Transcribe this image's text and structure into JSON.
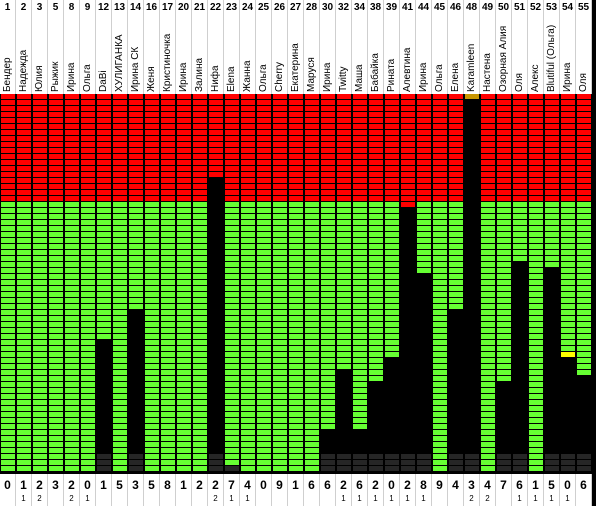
{
  "colors": {
    "red": "#ff0000",
    "green": "#66ff33",
    "yellow": "#ffff99",
    "gold": "#ffff00",
    "brown": "#c89600",
    "dark": "#262626"
  },
  "columns": [
    {
      "num": "1",
      "name": "Бендер",
      "score": "0",
      "sub": "",
      "black_to": 70,
      "yellow_from": 68
    },
    {
      "num": "2",
      "name": "Надежда",
      "score": "1",
      "sub": "1",
      "black_to": 46,
      "gold_at": 46,
      "yellow_from": 54
    },
    {
      "num": "3",
      "name": "Юлия",
      "score": "2",
      "sub": "2",
      "black_to": 64,
      "yellow_from": 54
    },
    {
      "num": "5",
      "name": "Рыжик",
      "score": "3",
      "sub": "",
      "black_to": 64,
      "yellow_from": 54
    },
    {
      "num": "8",
      "name": "Ирина",
      "score": "2",
      "sub": "2",
      "black_to": 49,
      "gold_at": 49,
      "yellow_from": 54
    },
    {
      "num": "9",
      "name": "Ольга",
      "score": "0",
      "sub": "1",
      "black_to": 54,
      "yellow_from": 54,
      "gold_at": 72
    },
    {
      "num": "12",
      "name": "DaBi",
      "score": "1",
      "sub": "",
      "black_to": 23
    },
    {
      "num": "13",
      "name": "ХУЛИГАНКА",
      "score": "5",
      "sub": "",
      "black_to": 54,
      "yellow_from": 54,
      "gold_at": 72
    },
    {
      "num": "14",
      "name": "Ирина СК",
      "score": "3",
      "sub": "",
      "black_to": 18
    },
    {
      "num": "16",
      "name": "Женя",
      "score": "5",
      "sub": "",
      "black_to": 54,
      "yellow_from": 54,
      "gold_at": 72
    },
    {
      "num": "17",
      "name": "Кристиночка",
      "score": "8",
      "sub": "",
      "black_to": 64,
      "yellow_from": 54
    },
    {
      "num": "20",
      "name": "Ирина",
      "score": "1",
      "sub": "",
      "black_to": 54,
      "yellow_from": 54,
      "gold_at": 70
    },
    {
      "num": "21",
      "name": "Залина",
      "score": "2",
      "sub": "",
      "black_to": 54,
      "yellow_from": 54,
      "gold_at": 70
    },
    {
      "num": "22",
      "name": "Нифа",
      "score": "2",
      "sub": "2",
      "black_to": 0,
      "red_from_black": 16
    },
    {
      "num": "23",
      "name": "Elena",
      "score": "7",
      "sub": "1",
      "black_to": 44
    },
    {
      "num": "24",
      "name": "Жанна",
      "score": "4",
      "sub": "1",
      "black_to": 56,
      "gold_at": 56
    },
    {
      "num": "25",
      "name": "Ольга",
      "score": "0",
      "sub": "",
      "black_to": 56,
      "yellow_from": 56,
      "gold_at": 74
    },
    {
      "num": "26",
      "name": "Cherry",
      "score": "9",
      "sub": "",
      "black_to": 54
    },
    {
      "num": "27",
      "name": "Екатерина",
      "score": "1",
      "sub": "",
      "black_to": 58,
      "yellow_from": 54
    },
    {
      "num": "28",
      "name": "Маруся",
      "score": "6",
      "sub": "",
      "black_to": 62,
      "yellow_from": 54
    },
    {
      "num": "30",
      "name": "Ирина",
      "score": "6",
      "sub": "",
      "black_to": 38
    },
    {
      "num": "32",
      "name": "Twitty",
      "score": "2",
      "sub": "1",
      "black_to": 28
    },
    {
      "num": "34",
      "name": "Маша",
      "score": "6",
      "sub": "1",
      "black_to": 38
    },
    {
      "num": "38",
      "name": "Бабайка",
      "score": "2",
      "sub": "1",
      "black_to": 30
    },
    {
      "num": "39",
      "name": "Рината",
      "score": "0",
      "sub": "1",
      "black_to": 26
    },
    {
      "num": "41",
      "name": "Алевтина",
      "score": "2",
      "sub": "1",
      "black_to": 0,
      "red_from_black": 21
    },
    {
      "num": "44",
      "name": "Ирина",
      "score": "8",
      "sub": "1",
      "black_to": 12
    },
    {
      "num": "45",
      "name": "Ольга",
      "score": "9",
      "sub": "",
      "black_to": 60,
      "yellow_from": 54
    },
    {
      "num": "46",
      "name": "Елена",
      "score": "4",
      "sub": "",
      "black_to": 18
    },
    {
      "num": "48",
      "name": "Karamleen",
      "score": "3",
      "sub": "2",
      "black_to": 0,
      "brown_top": true
    },
    {
      "num": "49",
      "name": "Настена",
      "score": "4",
      "sub": "2",
      "black_to": 64,
      "yellow_from": 54
    },
    {
      "num": "50",
      "name": "Озорная Алия",
      "score": "7",
      "sub": "",
      "black_to": 30
    },
    {
      "num": "51",
      "name": "Оля",
      "score": "6",
      "sub": "1",
      "black_to": 10
    },
    {
      "num": "52",
      "name": "Алекс",
      "score": "1",
      "sub": "1",
      "black_to": 66,
      "yellow_from": 54,
      "gold_at": 66
    },
    {
      "num": "53",
      "name": "Blutiful (Ольга)",
      "score": "5",
      "sub": "1",
      "black_to": 11
    },
    {
      "num": "54",
      "name": "Ирина",
      "score": "0",
      "sub": "1",
      "black_to": 26,
      "gold_at": 26
    },
    {
      "num": "55",
      "name": "Оля",
      "score": "6",
      "sub": "",
      "black_to": 29
    }
  ]
}
